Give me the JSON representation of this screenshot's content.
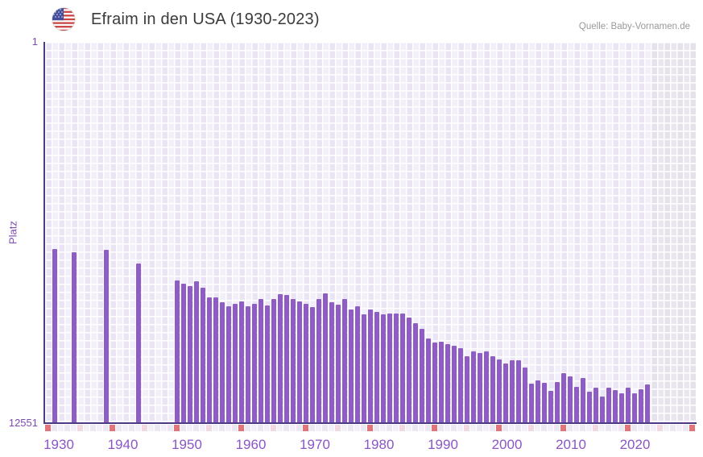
{
  "header": {
    "title": "Efraim in den USA (1930-2023)",
    "source": "Quelle: Baby-Vornamen.de",
    "flag_icon": "us-flag-icon"
  },
  "y_axis": {
    "label": "Platz",
    "top_tick": "1",
    "bottom_tick": "12551"
  },
  "chart_data": {
    "type": "bar",
    "title": "Efraim in den USA (1930-2023)",
    "xlabel": "",
    "ylabel": "Platz",
    "y_range": [
      1,
      12551
    ],
    "y_inverted": true,
    "x_range": [
      1930,
      2031
    ],
    "data_end_year": 2023,
    "x_tick_years": [
      1930,
      1940,
      1950,
      1960,
      1970,
      1980,
      1990,
      2000,
      2010,
      2020
    ],
    "decade_marker_years": [
      1930,
      1940,
      1950,
      1960,
      1970,
      1980,
      1990,
      2000,
      2010,
      2020,
      2030
    ],
    "half_decade_marker_years": [
      1935,
      1945,
      1955,
      1965,
      1975,
      1985,
      1995,
      2005,
      2015,
      2025
    ],
    "missing_years": [
      1930,
      1932,
      1933,
      1935,
      1936,
      1937,
      1938,
      1940,
      1941,
      1942,
      1943,
      1945,
      1946,
      1947,
      1948,
      1949
    ],
    "points": [
      [
        1931,
        6830
      ],
      [
        1934,
        6940
      ],
      [
        1939,
        6850
      ],
      [
        1944,
        7300
      ],
      [
        1950,
        7870
      ],
      [
        1951,
        7980
      ],
      [
        1952,
        8060
      ],
      [
        1953,
        7900
      ],
      [
        1954,
        8110
      ],
      [
        1955,
        8420
      ],
      [
        1956,
        8420
      ],
      [
        1957,
        8600
      ],
      [
        1958,
        8730
      ],
      [
        1959,
        8640
      ],
      [
        1960,
        8560
      ],
      [
        1961,
        8730
      ],
      [
        1962,
        8630
      ],
      [
        1963,
        8470
      ],
      [
        1964,
        8690
      ],
      [
        1965,
        8490
      ],
      [
        1966,
        8310
      ],
      [
        1967,
        8340
      ],
      [
        1968,
        8470
      ],
      [
        1969,
        8570
      ],
      [
        1970,
        8650
      ],
      [
        1971,
        8740
      ],
      [
        1972,
        8490
      ],
      [
        1973,
        8290
      ],
      [
        1974,
        8580
      ],
      [
        1975,
        8670
      ],
      [
        1976,
        8470
      ],
      [
        1977,
        8830
      ],
      [
        1978,
        8710
      ],
      [
        1979,
        9000
      ],
      [
        1980,
        8820
      ],
      [
        1981,
        8910
      ],
      [
        1982,
        9000
      ],
      [
        1983,
        8960
      ],
      [
        1984,
        8960
      ],
      [
        1985,
        8960
      ],
      [
        1986,
        9090
      ],
      [
        1987,
        9290
      ],
      [
        1988,
        9470
      ],
      [
        1989,
        9790
      ],
      [
        1990,
        9910
      ],
      [
        1991,
        9880
      ],
      [
        1992,
        9980
      ],
      [
        1993,
        10020
      ],
      [
        1994,
        10110
      ],
      [
        1995,
        10380
      ],
      [
        1996,
        10200
      ],
      [
        1997,
        10260
      ],
      [
        1998,
        10200
      ],
      [
        1999,
        10380
      ],
      [
        2000,
        10480
      ],
      [
        2001,
        10620
      ],
      [
        2002,
        10510
      ],
      [
        2003,
        10510
      ],
      [
        2004,
        10730
      ],
      [
        2005,
        11280
      ],
      [
        2006,
        11180
      ],
      [
        2007,
        11260
      ],
      [
        2008,
        11510
      ],
      [
        2009,
        11210
      ],
      [
        2010,
        10930
      ],
      [
        2011,
        11040
      ],
      [
        2012,
        11370
      ],
      [
        2013,
        11100
      ],
      [
        2014,
        11530
      ],
      [
        2015,
        11410
      ],
      [
        2016,
        11710
      ],
      [
        2017,
        11410
      ],
      [
        2018,
        11480
      ],
      [
        2019,
        11590
      ],
      [
        2020,
        11410
      ],
      [
        2021,
        11590
      ],
      [
        2022,
        11460
      ],
      [
        2023,
        11300
      ]
    ]
  },
  "colors": {
    "bar": "#8d5cc4",
    "axis": "#4e3a85",
    "x_tick_label": "#8a56c5",
    "y_tick_label": "#7c4bb0",
    "decade_marker": "#e2737b",
    "half_decade_marker": "#f1d8e1",
    "marker_cell_even": "#f4f0f9",
    "marker_cell_odd": "#ede7f2",
    "title": "#3b3b3b",
    "source": "#999999"
  }
}
